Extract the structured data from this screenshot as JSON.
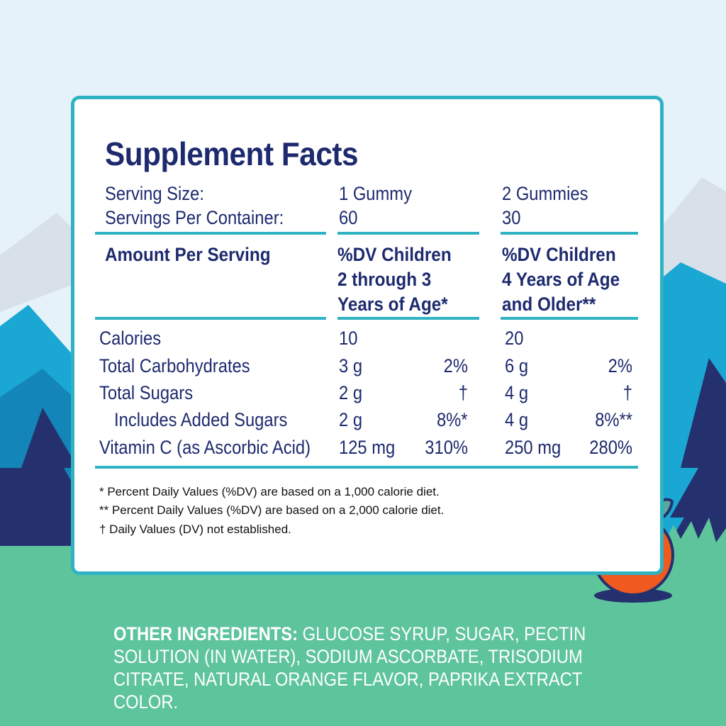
{
  "colors": {
    "sky": "#e6f2f9",
    "mountain_far": "#d8e1ea",
    "mountain_mid": "#1aa7d4",
    "mountain_dark": "#1385b9",
    "tree": "#25316e",
    "grass": "#5ec49c",
    "panel_border": "#2fb3c2",
    "navy_text": "#1d2a6e",
    "orange": "#ee5a1f",
    "leaf": "#5aa7a0"
  },
  "facts": {
    "title": "Supplement Facts",
    "serving_size_label": "Serving Size:",
    "servings_per_container_label": "Servings Per Container:",
    "col1_serving": "1 Gummy",
    "col1_servings": "60",
    "col2_serving": "2 Gummies",
    "col2_servings": "30",
    "amount_header": "Amount Per Serving",
    "col1_header": [
      "%DV Children",
      "2 through 3",
      "Years of Age*"
    ],
    "col2_header": [
      "%DV Children",
      "4 Years of Age",
      "and Older**"
    ],
    "rows": [
      {
        "label": "Calories",
        "c1_amount": "10",
        "c1_dv": "",
        "c2_amount": "20",
        "c2_dv": ""
      },
      {
        "label": "Total Carbohydrates",
        "c1_amount": "3 g",
        "c1_dv": "2%",
        "c2_amount": "6 g",
        "c2_dv": "2%"
      },
      {
        "label": "Total Sugars",
        "c1_amount": "2 g",
        "c1_dv": "†",
        "c2_amount": "4 g",
        "c2_dv": "†"
      },
      {
        "label": "Includes Added Sugars",
        "c1_amount": "2 g",
        "c1_dv": "8%*",
        "c2_amount": "4 g",
        "c2_dv": "8%**"
      },
      {
        "label": "Vitamin C (as Ascorbic Acid)",
        "c1_amount": "125 mg",
        "c1_dv": "310%",
        "c2_amount": "250 mg",
        "c2_dv": "280%"
      }
    ],
    "footnotes": [
      "* Percent Daily Values (%DV) are based on a 1,000 calorie diet.",
      "** Percent Daily Values (%DV) are based on a 2,000 calorie diet.",
      "† Daily Values (DV) not established."
    ]
  },
  "ingredients": {
    "label": "OTHER INGREDIENTS:",
    "text": " GLUCOSE SYRUP, SUGAR, PECTIN SOLUTION (IN WATER), SODIUM ASCORBATE, TRISODIUM CITRATE, NATURAL ORANGE FLAVOR, PAPRIKA EXTRACT COLOR."
  },
  "icons": {
    "mascot": "orange-mascot-icon",
    "trees": "pine-tree-icon",
    "mountains": "mountain-icon"
  }
}
